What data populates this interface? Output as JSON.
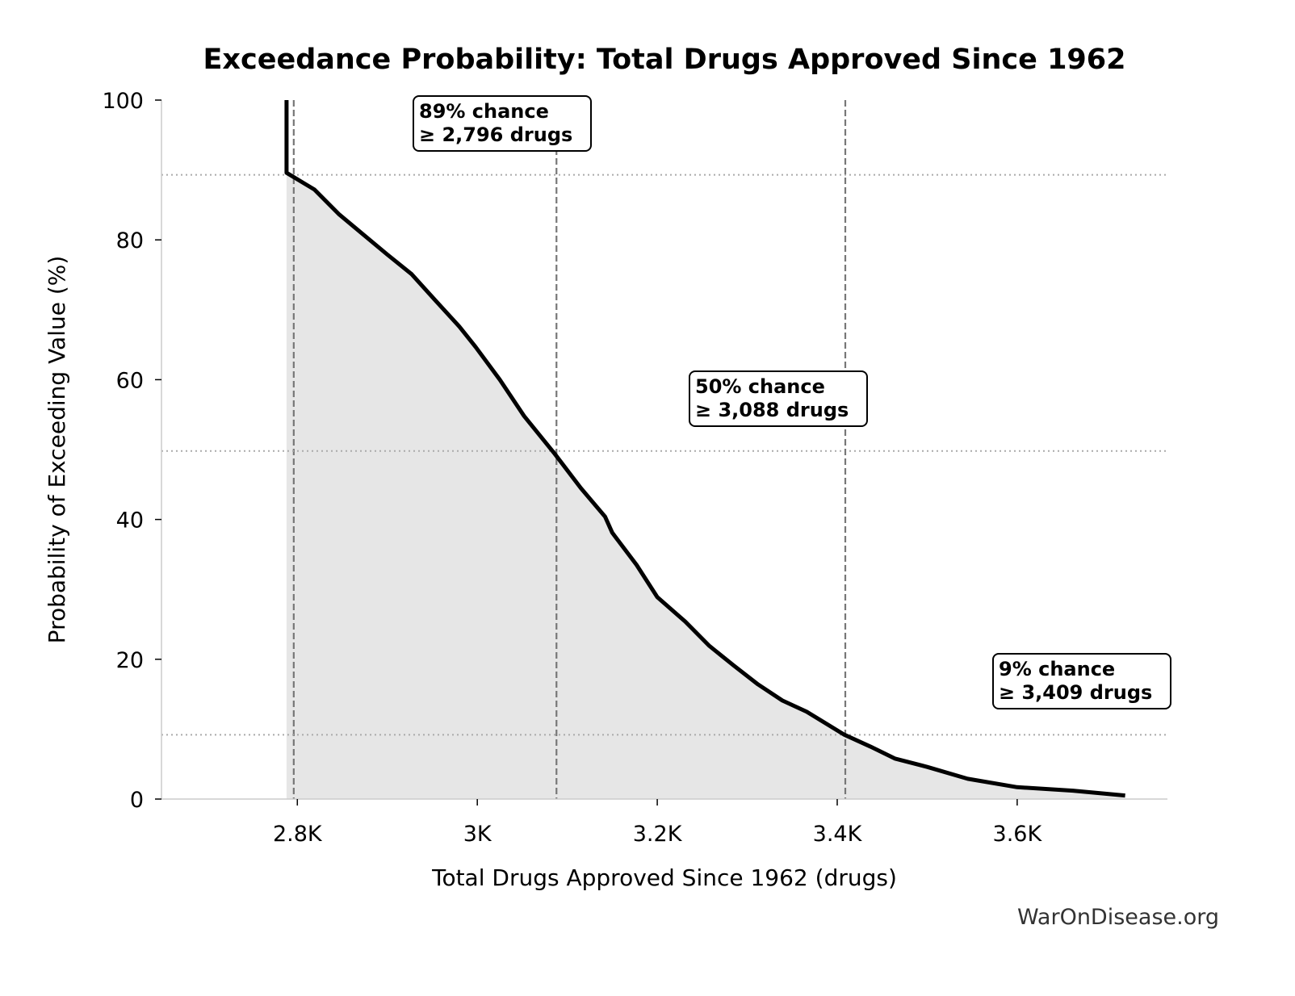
{
  "chart_data": {
    "type": "area",
    "title": "Exceedance Probability: Total Drugs Approved Since 1962",
    "xlabel": "Total Drugs Approved Since 1962 (drugs)",
    "ylabel": "Probability of Exceeding Value (%)",
    "xlim": [
      2649,
      3767
    ],
    "ylim": [
      0,
      100
    ],
    "x_ticks": [
      2800,
      3000,
      3200,
      3400,
      3600
    ],
    "x_tick_labels": [
      "2.8K",
      "3K",
      "3.2K",
      "3.4K",
      "3.6K"
    ],
    "y_ticks": [
      0,
      20,
      40,
      60,
      80,
      100
    ],
    "y_tick_labels": [
      "0",
      "20",
      "40",
      "60",
      "80",
      "100"
    ],
    "grid": false,
    "line_color": "#000000",
    "fill_color": "#e6e6e6",
    "series": [
      {
        "x": [
          2788,
          2788,
          2819,
          2846,
          2873,
          2900,
          2927,
          2953,
          2980,
          2998,
          3025,
          3052,
          3086,
          3115,
          3142,
          3150,
          3177,
          3200,
          3231,
          3258,
          3285,
          3312,
          3339,
          3366,
          3408,
          3437,
          3464,
          3500,
          3545,
          3600,
          3662,
          3720
        ],
        "y": [
          100,
          89.6,
          87.2,
          83.7,
          80.8,
          77.9,
          75.1,
          71.4,
          67.6,
          64.7,
          60.0,
          54.8,
          49.4,
          44.5,
          40.4,
          38.1,
          33.5,
          28.9,
          25.4,
          21.9,
          19.1,
          16.4,
          14.1,
          12.5,
          9.2,
          7.5,
          5.8,
          4.6,
          2.9,
          1.7,
          1.2,
          0.5
        ]
      }
    ],
    "reference_lines": [
      {
        "x": 2796,
        "y": 89.3,
        "line1": "89% chance",
        "line2": "≥ 2,796 drugs"
      },
      {
        "x": 3088,
        "y": 49.8,
        "line1": "50% chance",
        "line2": "≥ 3,088 drugs"
      },
      {
        "x": 3409,
        "y": 9.2,
        "line1": "9% chance",
        "line2": "≥ 3,409 drugs"
      }
    ]
  },
  "watermark": "WarOnDisease.org"
}
